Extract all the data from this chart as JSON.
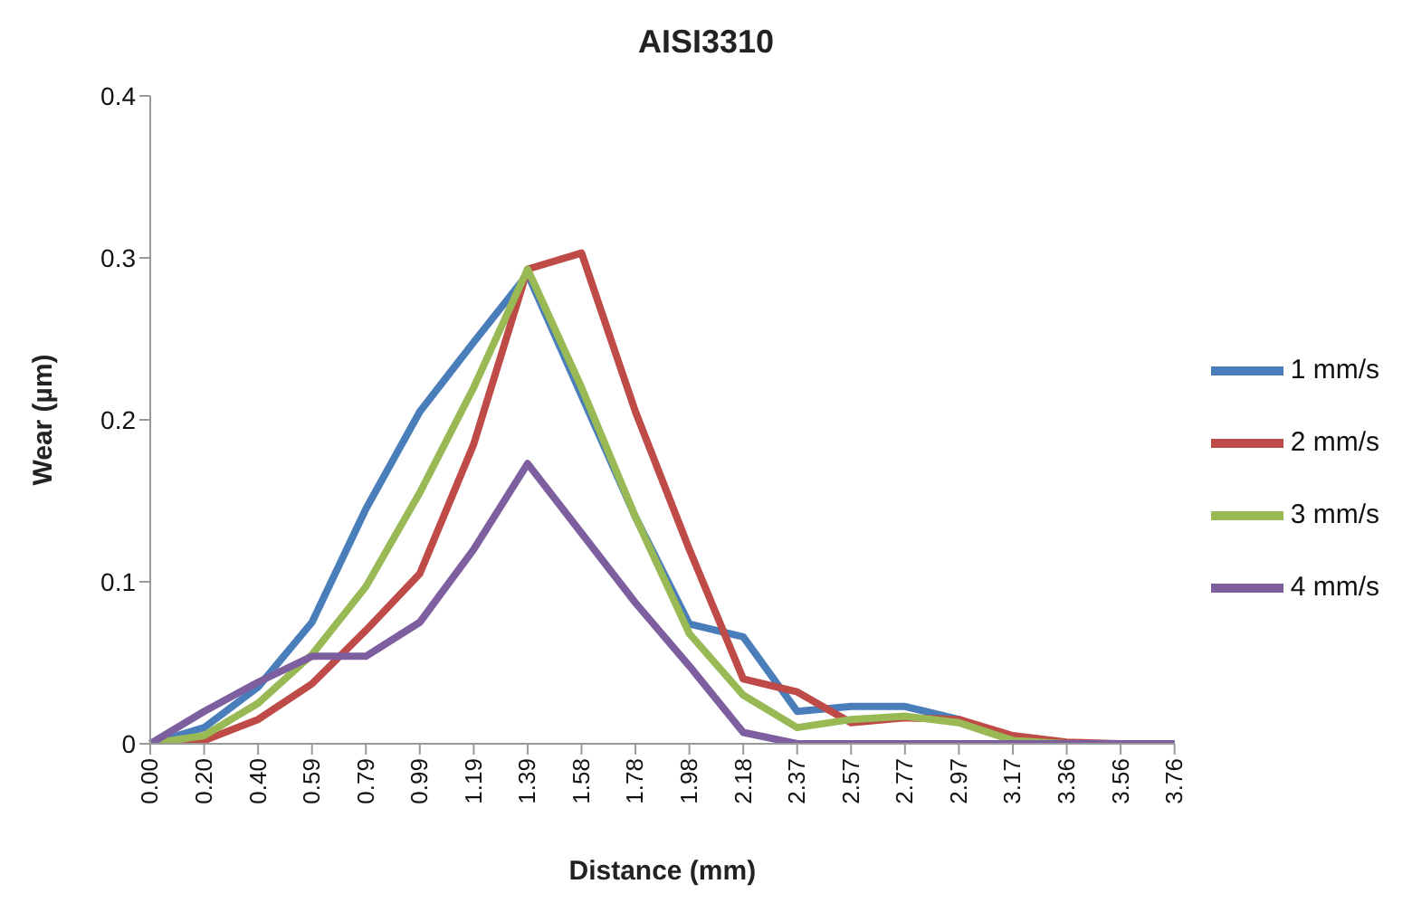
{
  "chart_data": {
    "type": "line",
    "title": "AISI3310",
    "xlabel": "Distance (mm)",
    "ylabel": "Wear (µm)",
    "categories": [
      "0.00",
      "0.20",
      "0.40",
      "0.59",
      "0.79",
      "0.99",
      "1.19",
      "1.39",
      "1.58",
      "1.78",
      "1.98",
      "2.18",
      "2.37",
      "2.57",
      "2.77",
      "2.97",
      "3.17",
      "3.36",
      "3.56",
      "3.76"
    ],
    "ylim": [
      0,
      0.4
    ],
    "yticks": [
      0,
      0.1,
      0.2,
      0.3,
      0.4
    ],
    "grid": false,
    "legend": "right",
    "marker": "none",
    "series": [
      {
        "name": "1 mm/s",
        "color": "#4a7ebb",
        "values": [
          0,
          0.01,
          0.035,
          0.075,
          0.145,
          0.205,
          0.248,
          0.29,
          0.215,
          0.14,
          0.074,
          0.066,
          0.02,
          0.023,
          0.023,
          0.015,
          0.003,
          null,
          null,
          null
        ]
      },
      {
        "name": "2 mm/s",
        "color": "#be4b48",
        "values": [
          0,
          0.002,
          0.015,
          0.037,
          0.07,
          0.105,
          0.185,
          0.293,
          0.303,
          0.205,
          0.12,
          0.04,
          0.032,
          0.013,
          0.016,
          0.015,
          0.005,
          0.001,
          0,
          0
        ]
      },
      {
        "name": "3 mm/s",
        "color": "#98b954",
        "values": [
          0,
          0.005,
          0.025,
          0.055,
          0.097,
          0.155,
          0.22,
          0.293,
          0.22,
          0.14,
          0.068,
          0.03,
          0.01,
          0.015,
          0.017,
          0.013,
          0.002,
          0,
          0,
          0
        ]
      },
      {
        "name": "4 mm/s",
        "color": "#7d5fa0",
        "values": [
          0,
          0.02,
          0.038,
          0.054,
          0.054,
          0.075,
          0.12,
          0.173,
          0.13,
          0.087,
          0.048,
          0.007,
          0,
          0,
          0,
          0,
          0,
          0,
          0,
          0
        ]
      }
    ]
  }
}
